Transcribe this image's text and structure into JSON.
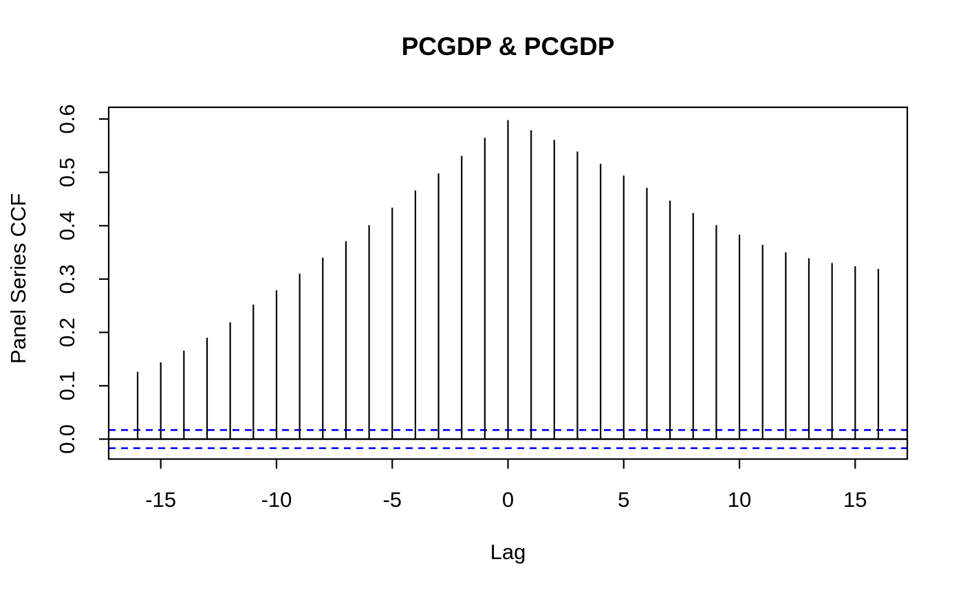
{
  "chart_data": {
    "type": "bar",
    "subtype": "ccf-stem-plot",
    "title": "PCGDP & PCGDP",
    "xlabel": "Lag",
    "ylabel": "Panel Series CCF",
    "lags": [
      -16,
      -15,
      -14,
      -13,
      -12,
      -11,
      -10,
      -9,
      -8,
      -7,
      -6,
      -5,
      -4,
      -3,
      -2,
      -1,
      0,
      1,
      2,
      3,
      4,
      5,
      6,
      7,
      8,
      9,
      10,
      11,
      12,
      13,
      14,
      15,
      16
    ],
    "values": [
      0.126,
      0.144,
      0.166,
      0.19,
      0.219,
      0.252,
      0.279,
      0.31,
      0.34,
      0.371,
      0.401,
      0.434,
      0.466,
      0.498,
      0.531,
      0.565,
      0.598,
      0.579,
      0.561,
      0.539,
      0.516,
      0.494,
      0.471,
      0.447,
      0.424,
      0.401,
      0.383,
      0.364,
      0.35,
      0.339,
      0.33,
      0.324,
      0.319
    ],
    "confidence_interval_upper": 0.017,
    "confidence_interval_lower": -0.017,
    "zero_line": 0,
    "x_ticks": [
      -15,
      -10,
      -5,
      0,
      5,
      10,
      15
    ],
    "y_ticks": [
      0.0,
      0.1,
      0.2,
      0.3,
      0.4,
      0.5,
      0.6
    ],
    "xlim": [
      -17.25,
      17.25
    ],
    "ylim": [
      -0.0374,
      0.622
    ],
    "grid": false,
    "legend": null,
    "colors": {
      "spike": "#000000",
      "ci_line": "#0000ff",
      "zero_line": "#000000",
      "axis": "#000000",
      "background": "#ffffff"
    }
  }
}
